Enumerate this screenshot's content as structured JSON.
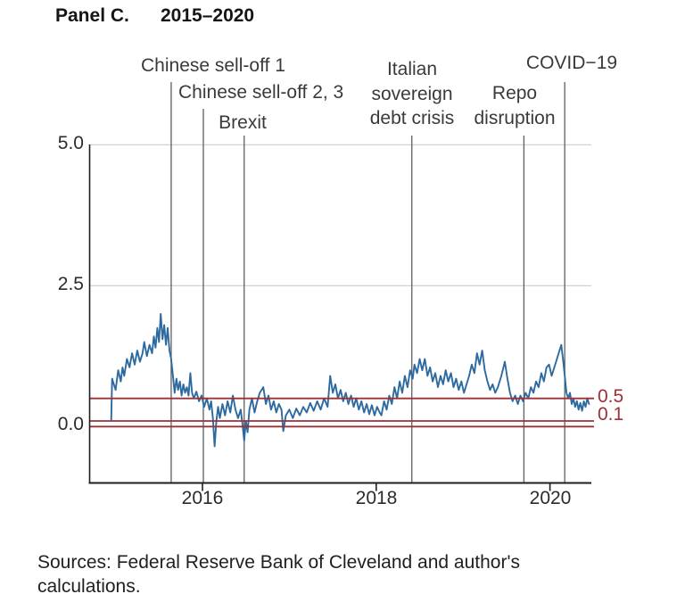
{
  "panel": {
    "label": "Panel C.",
    "title": "2015–2020"
  },
  "source_note": {
    "line1": "Sources: Federal Reserve Bank of Cleveland and author's",
    "line2": "calculations."
  },
  "annotation_lines": {
    "italian": [
      "Italian",
      "sovereign",
      "debt crisis"
    ],
    "repo": [
      "Repo",
      "disruption"
    ]
  },
  "chart_data": {
    "type": "line",
    "title": "Panel C. 2015–2020",
    "xlabel": "",
    "ylabel": "",
    "xlim": [
      2014.7,
      2020.48
    ],
    "ylim": [
      -1.0,
      5.0
    ],
    "x_ticks": [
      2016,
      2018,
      2020
    ],
    "x_tick_labels": [
      "2016",
      "2018",
      "2020"
    ],
    "y_ticks": [
      5.0,
      2.5,
      0.0
    ],
    "y_tick_labels": [
      "5.0",
      "2.5",
      "0.0"
    ],
    "grid": "horizontal gray gridlines at 2.5 and 5.0",
    "legend": "none",
    "line_color": "#2c6aa0",
    "reference_line_color": "#9c3136",
    "reference_lines": [
      {
        "value": 0.5,
        "label": "0.5"
      },
      {
        "value": 0.1,
        "label": "0.1"
      },
      {
        "value": 0.0,
        "label": ""
      }
    ],
    "event_lines": [
      {
        "label": "Chinese sell-off 1",
        "x": 2015.64
      },
      {
        "label": "Chinese sell-off 2, 3",
        "x": 2016.01
      },
      {
        "label": "Brexit",
        "x": 2016.48
      },
      {
        "label": "Italian sovereign debt crisis",
        "x": 2018.41
      },
      {
        "label": "Repo disruption",
        "x": 2019.7
      },
      {
        "label": "COVID−19",
        "x": 2020.17
      }
    ],
    "series": [
      {
        "name": "",
        "points": [
          [
            2014.95,
            0.12
          ],
          [
            2014.96,
            0.85
          ],
          [
            2015.0,
            0.65
          ],
          [
            2015.03,
            1.0
          ],
          [
            2015.06,
            0.8
          ],
          [
            2015.08,
            1.05
          ],
          [
            2015.1,
            0.9
          ],
          [
            2015.13,
            1.2
          ],
          [
            2015.16,
            1.05
          ],
          [
            2015.19,
            1.3
          ],
          [
            2015.22,
            1.1
          ],
          [
            2015.25,
            1.35
          ],
          [
            2015.28,
            1.15
          ],
          [
            2015.31,
            1.3
          ],
          [
            2015.33,
            1.5
          ],
          [
            2015.36,
            1.25
          ],
          [
            2015.39,
            1.45
          ],
          [
            2015.42,
            1.3
          ],
          [
            2015.44,
            1.6
          ],
          [
            2015.46,
            1.4
          ],
          [
            2015.48,
            1.75
          ],
          [
            2015.5,
            1.5
          ],
          [
            2015.52,
            2.0
          ],
          [
            2015.54,
            1.55
          ],
          [
            2015.56,
            1.8
          ],
          [
            2015.58,
            1.45
          ],
          [
            2015.6,
            1.75
          ],
          [
            2015.62,
            1.35
          ],
          [
            2015.64,
            1.2
          ],
          [
            2015.66,
            0.9
          ],
          [
            2015.68,
            0.6
          ],
          [
            2015.7,
            0.85
          ],
          [
            2015.72,
            0.65
          ],
          [
            2015.74,
            0.8
          ],
          [
            2015.76,
            0.55
          ],
          [
            2015.78,
            0.75
          ],
          [
            2015.8,
            0.6
          ],
          [
            2015.82,
            0.7
          ],
          [
            2015.84,
            0.55
          ],
          [
            2015.86,
            0.95
          ],
          [
            2015.88,
            0.6
          ],
          [
            2015.9,
            0.5
          ],
          [
            2015.93,
            0.62
          ],
          [
            2015.96,
            0.45
          ],
          [
            2015.99,
            0.55
          ],
          [
            2016.02,
            0.35
          ],
          [
            2016.05,
            0.5
          ],
          [
            2016.08,
            0.3
          ],
          [
            2016.1,
            0.45
          ],
          [
            2016.12,
            0.15
          ],
          [
            2016.14,
            -0.35
          ],
          [
            2016.16,
            0.1
          ],
          [
            2016.18,
            0.35
          ],
          [
            2016.2,
            0.15
          ],
          [
            2016.23,
            0.4
          ],
          [
            2016.26,
            0.2
          ],
          [
            2016.29,
            0.45
          ],
          [
            2016.32,
            0.25
          ],
          [
            2016.35,
            0.55
          ],
          [
            2016.38,
            0.3
          ],
          [
            2016.41,
            0.15
          ],
          [
            2016.44,
            0.3
          ],
          [
            2016.46,
            0.05
          ],
          [
            2016.48,
            -0.25
          ],
          [
            2016.5,
            0.1
          ],
          [
            2016.52,
            -0.1
          ],
          [
            2016.54,
            0.3
          ],
          [
            2016.57,
            0.5
          ],
          [
            2016.6,
            0.25
          ],
          [
            2016.63,
            0.45
          ],
          [
            2016.66,
            0.6
          ],
          [
            2016.7,
            0.7
          ],
          [
            2016.73,
            0.4
          ],
          [
            2016.76,
            0.55
          ],
          [
            2016.79,
            0.3
          ],
          [
            2016.82,
            0.45
          ],
          [
            2016.85,
            0.25
          ],
          [
            2016.88,
            0.4
          ],
          [
            2016.91,
            0.3
          ],
          [
            2016.93,
            -0.08
          ],
          [
            2016.96,
            0.2
          ],
          [
            2017.0,
            0.3
          ],
          [
            2017.04,
            0.15
          ],
          [
            2017.08,
            0.32
          ],
          [
            2017.12,
            0.2
          ],
          [
            2017.16,
            0.35
          ],
          [
            2017.2,
            0.25
          ],
          [
            2017.24,
            0.42
          ],
          [
            2017.28,
            0.28
          ],
          [
            2017.32,
            0.45
          ],
          [
            2017.36,
            0.3
          ],
          [
            2017.4,
            0.5
          ],
          [
            2017.44,
            0.35
          ],
          [
            2017.47,
            0.9
          ],
          [
            2017.5,
            0.6
          ],
          [
            2017.53,
            0.75
          ],
          [
            2017.56,
            0.5
          ],
          [
            2017.59,
            0.65
          ],
          [
            2017.62,
            0.45
          ],
          [
            2017.65,
            0.6
          ],
          [
            2017.68,
            0.4
          ],
          [
            2017.71,
            0.55
          ],
          [
            2017.74,
            0.35
          ],
          [
            2017.77,
            0.5
          ],
          [
            2017.8,
            0.3
          ],
          [
            2017.83,
            0.45
          ],
          [
            2017.86,
            0.25
          ],
          [
            2017.89,
            0.4
          ],
          [
            2017.92,
            0.22
          ],
          [
            2017.95,
            0.38
          ],
          [
            2017.98,
            0.2
          ],
          [
            2018.01,
            0.35
          ],
          [
            2018.04,
            0.25
          ],
          [
            2018.06,
            0.2
          ],
          [
            2018.09,
            0.45
          ],
          [
            2018.12,
            0.3
          ],
          [
            2018.15,
            0.55
          ],
          [
            2018.18,
            0.4
          ],
          [
            2018.21,
            0.7
          ],
          [
            2018.24,
            0.5
          ],
          [
            2018.27,
            0.8
          ],
          [
            2018.3,
            0.6
          ],
          [
            2018.33,
            0.9
          ],
          [
            2018.36,
            0.7
          ],
          [
            2018.39,
            1.0
          ],
          [
            2018.42,
            0.85
          ],
          [
            2018.44,
            1.1
          ],
          [
            2018.47,
            0.95
          ],
          [
            2018.5,
            1.2
          ],
          [
            2018.53,
            1.0
          ],
          [
            2018.56,
            1.2
          ],
          [
            2018.59,
            0.9
          ],
          [
            2018.62,
            1.05
          ],
          [
            2018.65,
            0.8
          ],
          [
            2018.68,
            0.95
          ],
          [
            2018.71,
            0.7
          ],
          [
            2018.74,
            0.9
          ],
          [
            2018.77,
            0.75
          ],
          [
            2018.8,
            1.0
          ],
          [
            2018.83,
            0.8
          ],
          [
            2018.86,
            0.95
          ],
          [
            2018.89,
            0.7
          ],
          [
            2018.92,
            0.85
          ],
          [
            2018.95,
            0.65
          ],
          [
            2018.98,
            0.8
          ],
          [
            2019.01,
            0.6
          ],
          [
            2019.04,
            0.75
          ],
          [
            2019.07,
            0.9
          ],
          [
            2019.1,
            1.1
          ],
          [
            2019.13,
            0.95
          ],
          [
            2019.16,
            1.3
          ],
          [
            2019.19,
            1.1
          ],
          [
            2019.22,
            1.35
          ],
          [
            2019.25,
            1.0
          ],
          [
            2019.28,
            0.8
          ],
          [
            2019.31,
            0.65
          ],
          [
            2019.34,
            0.75
          ],
          [
            2019.37,
            0.6
          ],
          [
            2019.4,
            0.7
          ],
          [
            2019.44,
            0.9
          ],
          [
            2019.48,
            1.15
          ],
          [
            2019.51,
            0.85
          ],
          [
            2019.54,
            0.6
          ],
          [
            2019.57,
            0.45
          ],
          [
            2019.6,
            0.55
          ],
          [
            2019.63,
            0.4
          ],
          [
            2019.66,
            0.55
          ],
          [
            2019.69,
            0.45
          ],
          [
            2019.72,
            0.6
          ],
          [
            2019.75,
            0.5
          ],
          [
            2019.78,
            0.7
          ],
          [
            2019.81,
            0.6
          ],
          [
            2019.84,
            0.8
          ],
          [
            2019.87,
            0.7
          ],
          [
            2019.9,
            0.95
          ],
          [
            2019.93,
            0.8
          ],
          [
            2019.96,
            1.05
          ],
          [
            2019.99,
            1.1
          ],
          [
            2020.02,
            0.9
          ],
          [
            2020.05,
            1.05
          ],
          [
            2020.08,
            1.2
          ],
          [
            2020.11,
            1.35
          ],
          [
            2020.13,
            1.45
          ],
          [
            2020.15,
            1.2
          ],
          [
            2020.17,
            0.9
          ],
          [
            2020.19,
            0.6
          ],
          [
            2020.21,
            0.5
          ],
          [
            2020.23,
            0.6
          ],
          [
            2020.25,
            0.4
          ],
          [
            2020.27,
            0.5
          ],
          [
            2020.29,
            0.35
          ],
          [
            2020.31,
            0.45
          ],
          [
            2020.33,
            0.3
          ],
          [
            2020.35,
            0.42
          ],
          [
            2020.37,
            0.28
          ],
          [
            2020.39,
            0.45
          ],
          [
            2020.41,
            0.35
          ],
          [
            2020.43,
            0.5
          ],
          [
            2020.45,
            0.4
          ]
        ]
      }
    ]
  }
}
